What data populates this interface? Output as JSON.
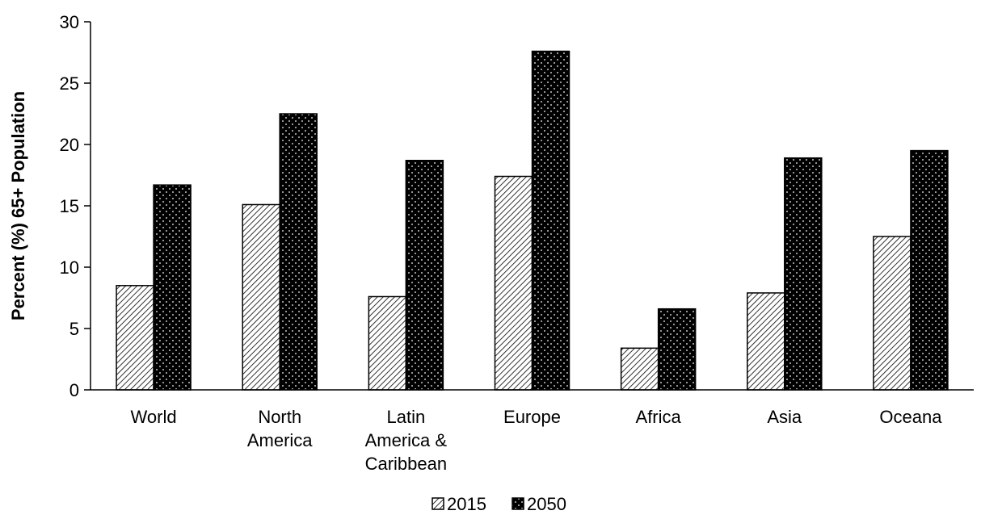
{
  "chart_data": {
    "type": "bar",
    "title": "",
    "xlabel": "",
    "ylabel": "Percent (%) 65+ Population",
    "ylim": [
      0,
      30
    ],
    "yticks": [
      0,
      5,
      10,
      15,
      20,
      25,
      30
    ],
    "grid": false,
    "legend_position": "bottom",
    "categories": [
      [
        "World"
      ],
      [
        "North",
        "America"
      ],
      [
        "Latin",
        "America &",
        "Caribbean"
      ],
      [
        "Europe"
      ],
      [
        "Africa"
      ],
      [
        "Asia"
      ],
      [
        "Oceana"
      ]
    ],
    "series": [
      {
        "name": "2015",
        "pattern": "hatch",
        "values": [
          8.5,
          15.1,
          7.6,
          17.4,
          3.4,
          7.9,
          12.5
        ]
      },
      {
        "name": "2050",
        "pattern": "dots",
        "values": [
          16.7,
          22.5,
          18.7,
          27.6,
          6.6,
          18.9,
          19.5
        ]
      }
    ],
    "colors": {
      "bar_edge": "#000000",
      "hatch_line": "#000000",
      "dot_fill": "#ffffff",
      "dot_bg": "#000000"
    }
  }
}
